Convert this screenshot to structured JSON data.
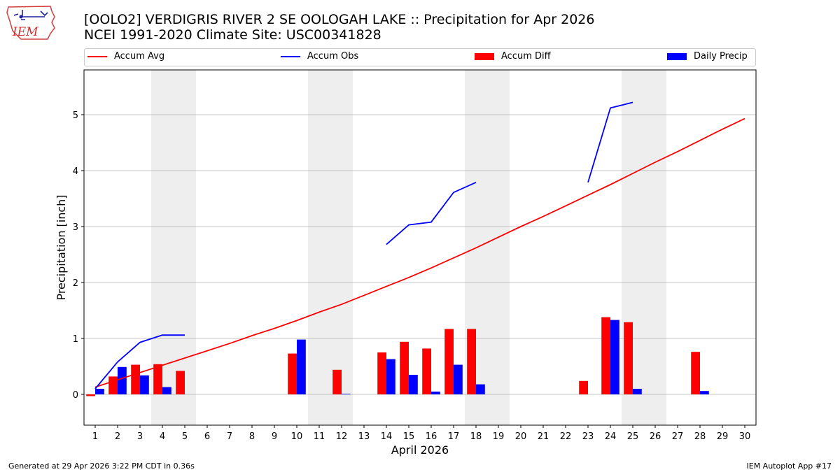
{
  "logo": {
    "text": "IEM"
  },
  "title": {
    "line1": "[OOLO2] VERDIGRIS RIVER 2 SE OOLOGAH LAKE :: Precipitation for Apr 2026",
    "line2": "NCEI 1991-2020 Climate Site: USC00341828"
  },
  "legend": {
    "accum_avg": "Accum Avg",
    "accum_obs": "Accum Obs",
    "accum_diff": "Accum Diff",
    "daily_precip": "Daily Precip"
  },
  "colors": {
    "accum_avg": "#ff0000",
    "accum_obs": "#0000ff",
    "accum_diff": "#ff0000",
    "daily_precip": "#0000ff",
    "weekend_shade": "#eeeeee",
    "grid": "#b0b0b0"
  },
  "footer": {
    "left": "Generated at 29 Apr 2026 3:22 PM CDT in 0.36s",
    "right": "IEM Autoplot App #17"
  },
  "chart_data": {
    "type": "bar",
    "xlabel": "April 2026",
    "ylabel": "Precipitation [inch]",
    "xlim": [
      0.5,
      30.5
    ],
    "ylim": [
      -0.55,
      5.8
    ],
    "yticks": [
      0,
      1,
      2,
      3,
      4,
      5
    ],
    "grid": "horizontal",
    "legend_position": "top",
    "days": [
      1,
      2,
      3,
      4,
      5,
      6,
      7,
      8,
      9,
      10,
      11,
      12,
      13,
      14,
      15,
      16,
      17,
      18,
      19,
      20,
      21,
      22,
      23,
      24,
      25,
      26,
      27,
      28,
      29,
      30
    ],
    "weekend_bands": [
      [
        3.5,
        5.5
      ],
      [
        10.5,
        12.5
      ],
      [
        17.5,
        19.5
      ],
      [
        24.5,
        26.5
      ]
    ],
    "accum_avg": [
      0.13,
      0.26,
      0.39,
      0.52,
      0.65,
      0.78,
      0.91,
      1.05,
      1.18,
      1.32,
      1.47,
      1.61,
      1.77,
      1.93,
      2.09,
      2.26,
      2.44,
      2.62,
      2.81,
      3.0,
      3.18,
      3.37,
      3.56,
      3.75,
      3.95,
      4.15,
      4.34,
      4.54,
      4.74,
      4.93
    ],
    "accum_obs_segments": [
      {
        "days": [
          1,
          2,
          3,
          4,
          5
        ],
        "values": [
          0.1,
          0.58,
          0.93,
          1.06,
          1.06
        ]
      },
      {
        "days": [
          14,
          15,
          16,
          17,
          18
        ],
        "values": [
          2.68,
          3.03,
          3.08,
          3.61,
          3.79
        ]
      },
      {
        "days": [
          23,
          24,
          25
        ],
        "values": [
          3.79,
          5.12,
          5.22
        ]
      }
    ],
    "series": [
      {
        "name": "Accum Diff",
        "values": [
          -0.03,
          0.32,
          0.53,
          0.54,
          0.42,
          0,
          0,
          0,
          0,
          0.73,
          0,
          0.44,
          0,
          0.75,
          0.94,
          0.82,
          1.17,
          1.17,
          0,
          0,
          0,
          0,
          0.24,
          1.38,
          1.29,
          0,
          0,
          0.76,
          0,
          0
        ]
      },
      {
        "name": "Daily Precip",
        "values": [
          0.1,
          0.49,
          0.34,
          0.13,
          0,
          0,
          0,
          0,
          0,
          0.98,
          0,
          0.01,
          0,
          0.63,
          0.35,
          0.05,
          0.53,
          0.18,
          0,
          0,
          0,
          0,
          0,
          1.33,
          0.1,
          0,
          0,
          0.06,
          0,
          0
        ]
      }
    ]
  }
}
